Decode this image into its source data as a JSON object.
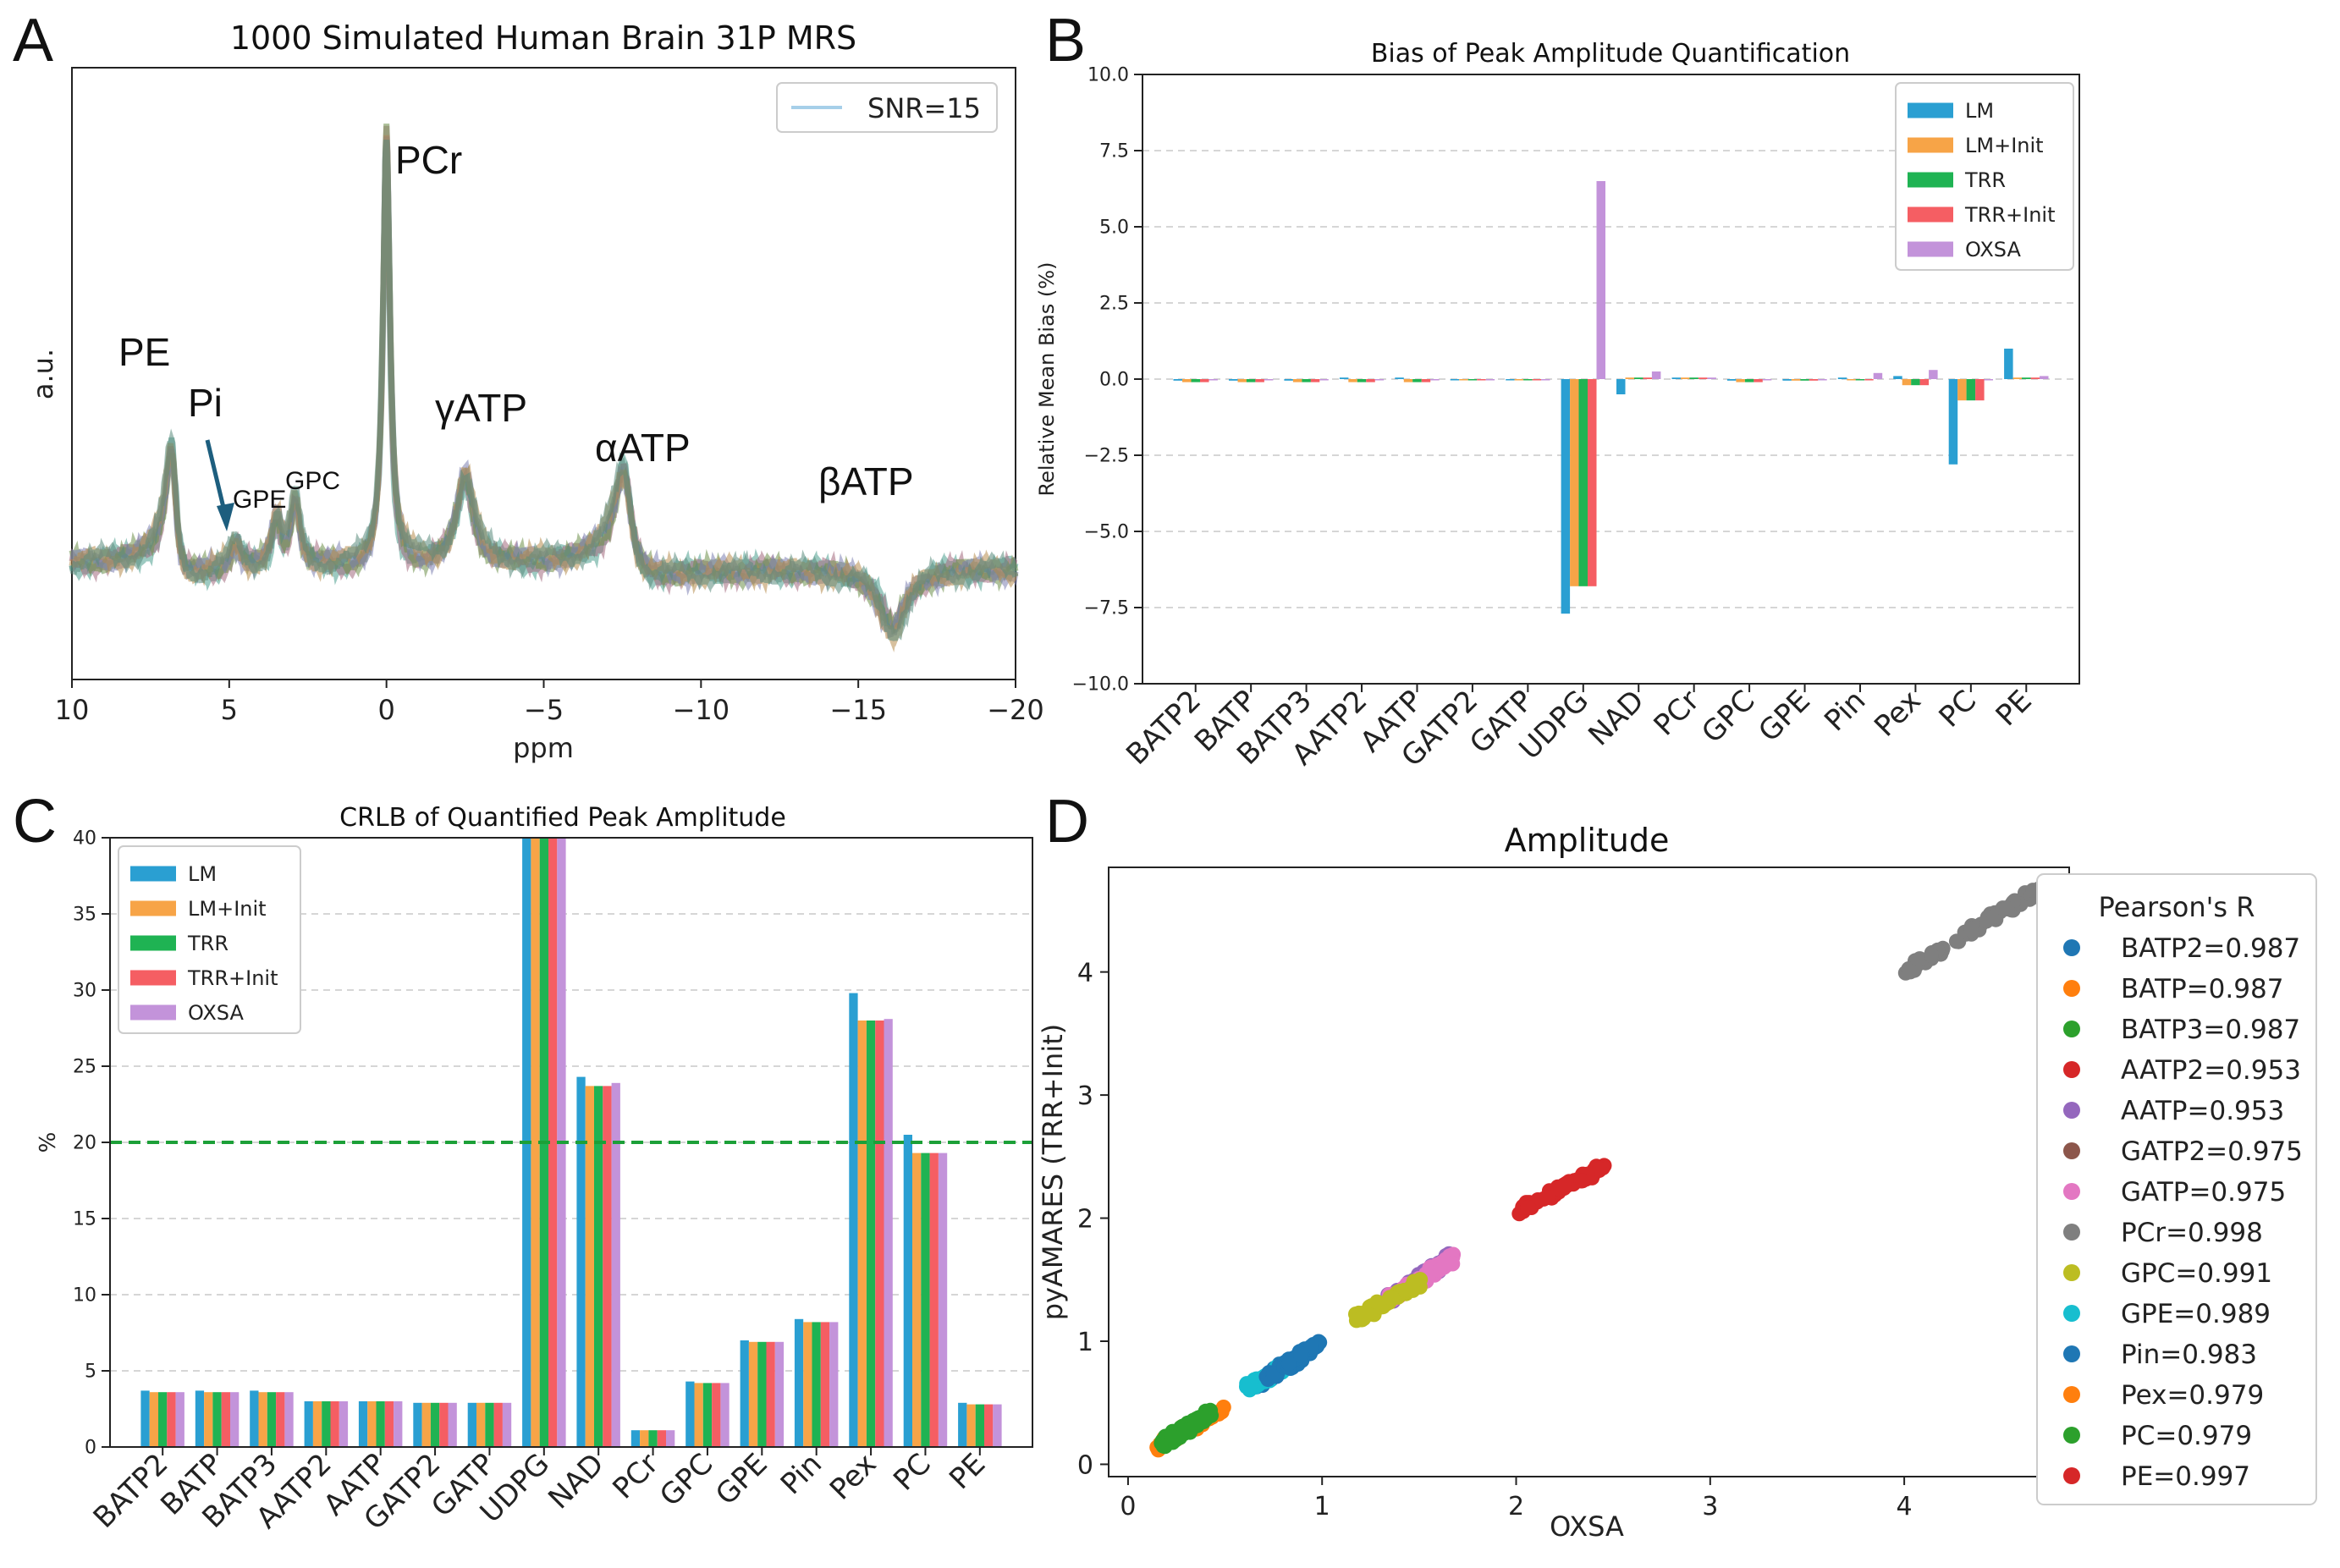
{
  "panel_letters": {
    "a": "A",
    "b": "B",
    "c": "C",
    "d": "D"
  },
  "colors": {
    "LM": "#2a9fd2",
    "LM+Init": "#f7a447",
    "TRR": "#1fb353",
    "TRR+Init": "#f55e63",
    "OXSA": "#c393da",
    "threshold": "#1ca038",
    "spectrum": "#5a8a7c",
    "BATP2": "#1f77b4",
    "BATP": "#ff7f0e",
    "BATP3": "#2ca02c",
    "AATP2": "#d62728",
    "AATP": "#9467bd",
    "GATP2": "#8c564b",
    "GATP": "#e377c2",
    "PCr": "#7f7f7f",
    "GPC": "#bcbd22",
    "GPE": "#17becf",
    "Pin": "#1f77b4",
    "Pex": "#ff7f0e",
    "PC": "#2ca02c",
    "PE": "#d62728"
  },
  "chart_data": [
    {
      "id": "A",
      "type": "line",
      "title": "1000 Simulated Human Brain 31P MRS",
      "xlabel": "ppm",
      "ylabel": "a.u.",
      "xlim": [
        10,
        -20
      ],
      "xticks": [
        10,
        5,
        0,
        -5,
        -10,
        -15,
        -20
      ],
      "xtick_labels": [
        "10",
        "5",
        "0",
        "−5",
        "−10",
        "−15",
        "−20"
      ],
      "legend": [
        "SNR=15"
      ],
      "peak_labels": [
        "PE",
        "Pi",
        "GPE",
        "GPC",
        "PCr",
        "γATP",
        "αATP",
        "βATP"
      ],
      "peaks": [
        {
          "name": "PE",
          "ppm": 6.8,
          "height": 0.22,
          "width": 0.18
        },
        {
          "name": "Pi",
          "ppm": 4.8,
          "height": 0.05,
          "width": 0.2
        },
        {
          "name": "GPE",
          "ppm": 3.5,
          "height": 0.09,
          "width": 0.16
        },
        {
          "name": "GPC",
          "ppm": 2.9,
          "height": 0.13,
          "width": 0.16
        },
        {
          "name": "PCr",
          "ppm": 0.0,
          "height": 0.85,
          "width": 0.12
        },
        {
          "name": "γATP",
          "ppm": -2.5,
          "height": 0.17,
          "width": 0.3
        },
        {
          "name": "αATP",
          "ppm": -7.6,
          "height": 0.18,
          "width": 0.3
        },
        {
          "name": "βATP",
          "ppm": -16.1,
          "height": 0.12,
          "width": 0.45
        }
      ]
    },
    {
      "id": "B",
      "type": "bar",
      "title": "Bias of Peak Amplitude Quantification",
      "ylabel": "Relative Mean Bias (%)",
      "ylim": [
        -10,
        10
      ],
      "yticks": [
        -10,
        -7.5,
        -5,
        -2.5,
        0,
        2.5,
        5,
        7.5,
        10
      ],
      "ytick_labels": [
        "−10.0",
        "−7.5",
        "−5.0",
        "−2.5",
        "0.0",
        "2.5",
        "5.0",
        "7.5",
        "10.0"
      ],
      "categories": [
        "BATP2",
        "BATP",
        "BATP3",
        "AATP2",
        "AATP",
        "GATP2",
        "GATP",
        "UDPG",
        "NAD",
        "PCr",
        "GPC",
        "GPE",
        "Pin",
        "Pex",
        "PC",
        "PE"
      ],
      "series": [
        {
          "name": "LM",
          "values": [
            -0.05,
            -0.05,
            -0.05,
            0.05,
            0.05,
            0.0,
            0.0,
            -7.7,
            -0.5,
            0.05,
            -0.05,
            -0.05,
            0.05,
            0.1,
            -2.8,
            1.0
          ]
        },
        {
          "name": "LM+Init",
          "values": [
            -0.1,
            -0.1,
            -0.1,
            -0.1,
            -0.1,
            0.0,
            0.0,
            -6.8,
            0.05,
            0.05,
            -0.1,
            -0.05,
            0.0,
            -0.2,
            -0.7,
            0.05
          ]
        },
        {
          "name": "TRR",
          "values": [
            -0.1,
            -0.1,
            -0.1,
            -0.1,
            -0.1,
            0.0,
            0.0,
            -6.8,
            0.05,
            0.05,
            -0.1,
            -0.05,
            0.0,
            -0.2,
            -0.7,
            0.05
          ]
        },
        {
          "name": "TRR+Init",
          "values": [
            -0.1,
            -0.1,
            -0.1,
            -0.1,
            -0.1,
            0.0,
            0.0,
            -6.8,
            0.05,
            0.05,
            -0.1,
            -0.05,
            0.0,
            -0.2,
            -0.7,
            0.05
          ]
        },
        {
          "name": "OXSA",
          "values": [
            0.0,
            0.0,
            0.0,
            0.0,
            0.0,
            0.0,
            0.0,
            6.5,
            0.25,
            0.05,
            0.0,
            0.0,
            0.2,
            0.3,
            0.0,
            0.1
          ]
        }
      ]
    },
    {
      "id": "C",
      "type": "bar",
      "title": "CRLB of Quantified Peak Amplitude",
      "ylabel": "%",
      "ylim": [
        0,
        40
      ],
      "yticks": [
        0,
        5,
        10,
        15,
        20,
        25,
        30,
        35,
        40
      ],
      "ytick_labels": [
        "0",
        "5",
        "10",
        "15",
        "20",
        "25",
        "30",
        "35",
        "40"
      ],
      "threshold": 20,
      "categories": [
        "BATP2",
        "BATP",
        "BATP3",
        "AATP2",
        "AATP",
        "GATP2",
        "GATP",
        "UDPG",
        "NAD",
        "PCr",
        "GPC",
        "GPE",
        "Pin",
        "Pex",
        "PC",
        "PE"
      ],
      "series": [
        {
          "name": "LM",
          "values": [
            3.7,
            3.7,
            3.7,
            3.0,
            3.0,
            2.9,
            2.9,
            40,
            24.3,
            1.1,
            4.3,
            7.0,
            8.4,
            29.8,
            20.5,
            2.9
          ]
        },
        {
          "name": "LM+Init",
          "values": [
            3.6,
            3.6,
            3.6,
            3.0,
            3.0,
            2.9,
            2.9,
            40,
            23.7,
            1.1,
            4.2,
            6.9,
            8.2,
            28.0,
            19.3,
            2.8
          ]
        },
        {
          "name": "TRR",
          "values": [
            3.6,
            3.6,
            3.6,
            3.0,
            3.0,
            2.9,
            2.9,
            40,
            23.7,
            1.1,
            4.2,
            6.9,
            8.2,
            28.0,
            19.3,
            2.8
          ]
        },
        {
          "name": "TRR+Init",
          "values": [
            3.6,
            3.6,
            3.6,
            3.0,
            3.0,
            2.9,
            2.9,
            40,
            23.7,
            1.1,
            4.2,
            6.9,
            8.2,
            28.0,
            19.3,
            2.8
          ]
        },
        {
          "name": "OXSA",
          "values": [
            3.6,
            3.6,
            3.6,
            3.0,
            3.0,
            2.9,
            2.9,
            40,
            23.9,
            1.1,
            4.2,
            6.9,
            8.2,
            28.1,
            19.3,
            2.8
          ]
        }
      ]
    },
    {
      "id": "D",
      "type": "scatter",
      "title": "Amplitude",
      "xlabel": "OXSA",
      "ylabel": "pyAMARES (TRR+Init)",
      "xlim": [
        -0.1,
        4.85
      ],
      "ylim": [
        -0.1,
        4.85
      ],
      "ticks": [
        0,
        1,
        2,
        3,
        4
      ],
      "tick_labels": [
        "0",
        "1",
        "2",
        "3",
        "4"
      ],
      "legend_title": "Pearson's R",
      "series": [
        {
          "name": "BATP2",
          "label": "BATP2=0.987",
          "x_range": [
            0.65,
            0.98
          ],
          "y_range": [
            0.63,
            0.98
          ],
          "draw": true
        },
        {
          "name": "BATP",
          "label": "BATP=0.987",
          "x_range": [
            0.15,
            0.48
          ],
          "y_range": [
            0.14,
            0.45
          ],
          "draw": true
        },
        {
          "name": "BATP3",
          "label": "BATP3=0.987",
          "x_range": [
            0.18,
            0.42
          ],
          "y_range": [
            0.18,
            0.42
          ],
          "draw": true
        },
        {
          "name": "AATP2",
          "label": "AATP2=0.953",
          "x_range": [
            2.0,
            2.45
          ],
          "y_range": [
            2.05,
            2.42
          ],
          "draw": false
        },
        {
          "name": "AATP",
          "label": "AATP=0.953",
          "x_range": [
            1.35,
            1.68
          ],
          "y_range": [
            1.35,
            1.7
          ],
          "draw": true
        },
        {
          "name": "GATP2",
          "label": "GATP2=0.975",
          "x_range": [
            1.4,
            1.65
          ],
          "y_range": [
            1.4,
            1.65
          ],
          "draw": false
        },
        {
          "name": "GATP",
          "label": "GATP=0.975",
          "x_range": [
            1.35,
            1.68
          ],
          "y_range": [
            1.35,
            1.68
          ],
          "draw": true
        },
        {
          "name": "PCr",
          "label": "PCr=0.998",
          "x_range": [
            4.0,
            4.7
          ],
          "y_range": [
            4.0,
            4.68
          ],
          "draw": true
        },
        {
          "name": "GPC",
          "label": "GPC=0.991",
          "x_range": [
            1.18,
            1.5
          ],
          "y_range": [
            1.18,
            1.48
          ],
          "draw": true
        },
        {
          "name": "GPE",
          "label": "GPE=0.989",
          "x_range": [
            0.62,
            0.82
          ],
          "y_range": [
            0.62,
            0.8
          ],
          "draw": true
        },
        {
          "name": "Pin",
          "label": "Pin=0.983",
          "x_range": [
            0.72,
            0.98
          ],
          "y_range": [
            0.7,
            0.97
          ],
          "draw": true
        },
        {
          "name": "Pex",
          "label": "Pex=0.979",
          "x_range": [
            0.16,
            0.45
          ],
          "y_range": [
            0.14,
            0.45
          ],
          "draw": false
        },
        {
          "name": "PC",
          "label": "PC=0.979",
          "x_range": [
            0.18,
            0.42
          ],
          "y_range": [
            0.16,
            0.4
          ],
          "draw": true
        },
        {
          "name": "PE",
          "label": "PE=0.997",
          "x_range": [
            2.0,
            2.45
          ],
          "y_range": [
            2.05,
            2.42
          ],
          "draw": true
        }
      ]
    }
  ]
}
